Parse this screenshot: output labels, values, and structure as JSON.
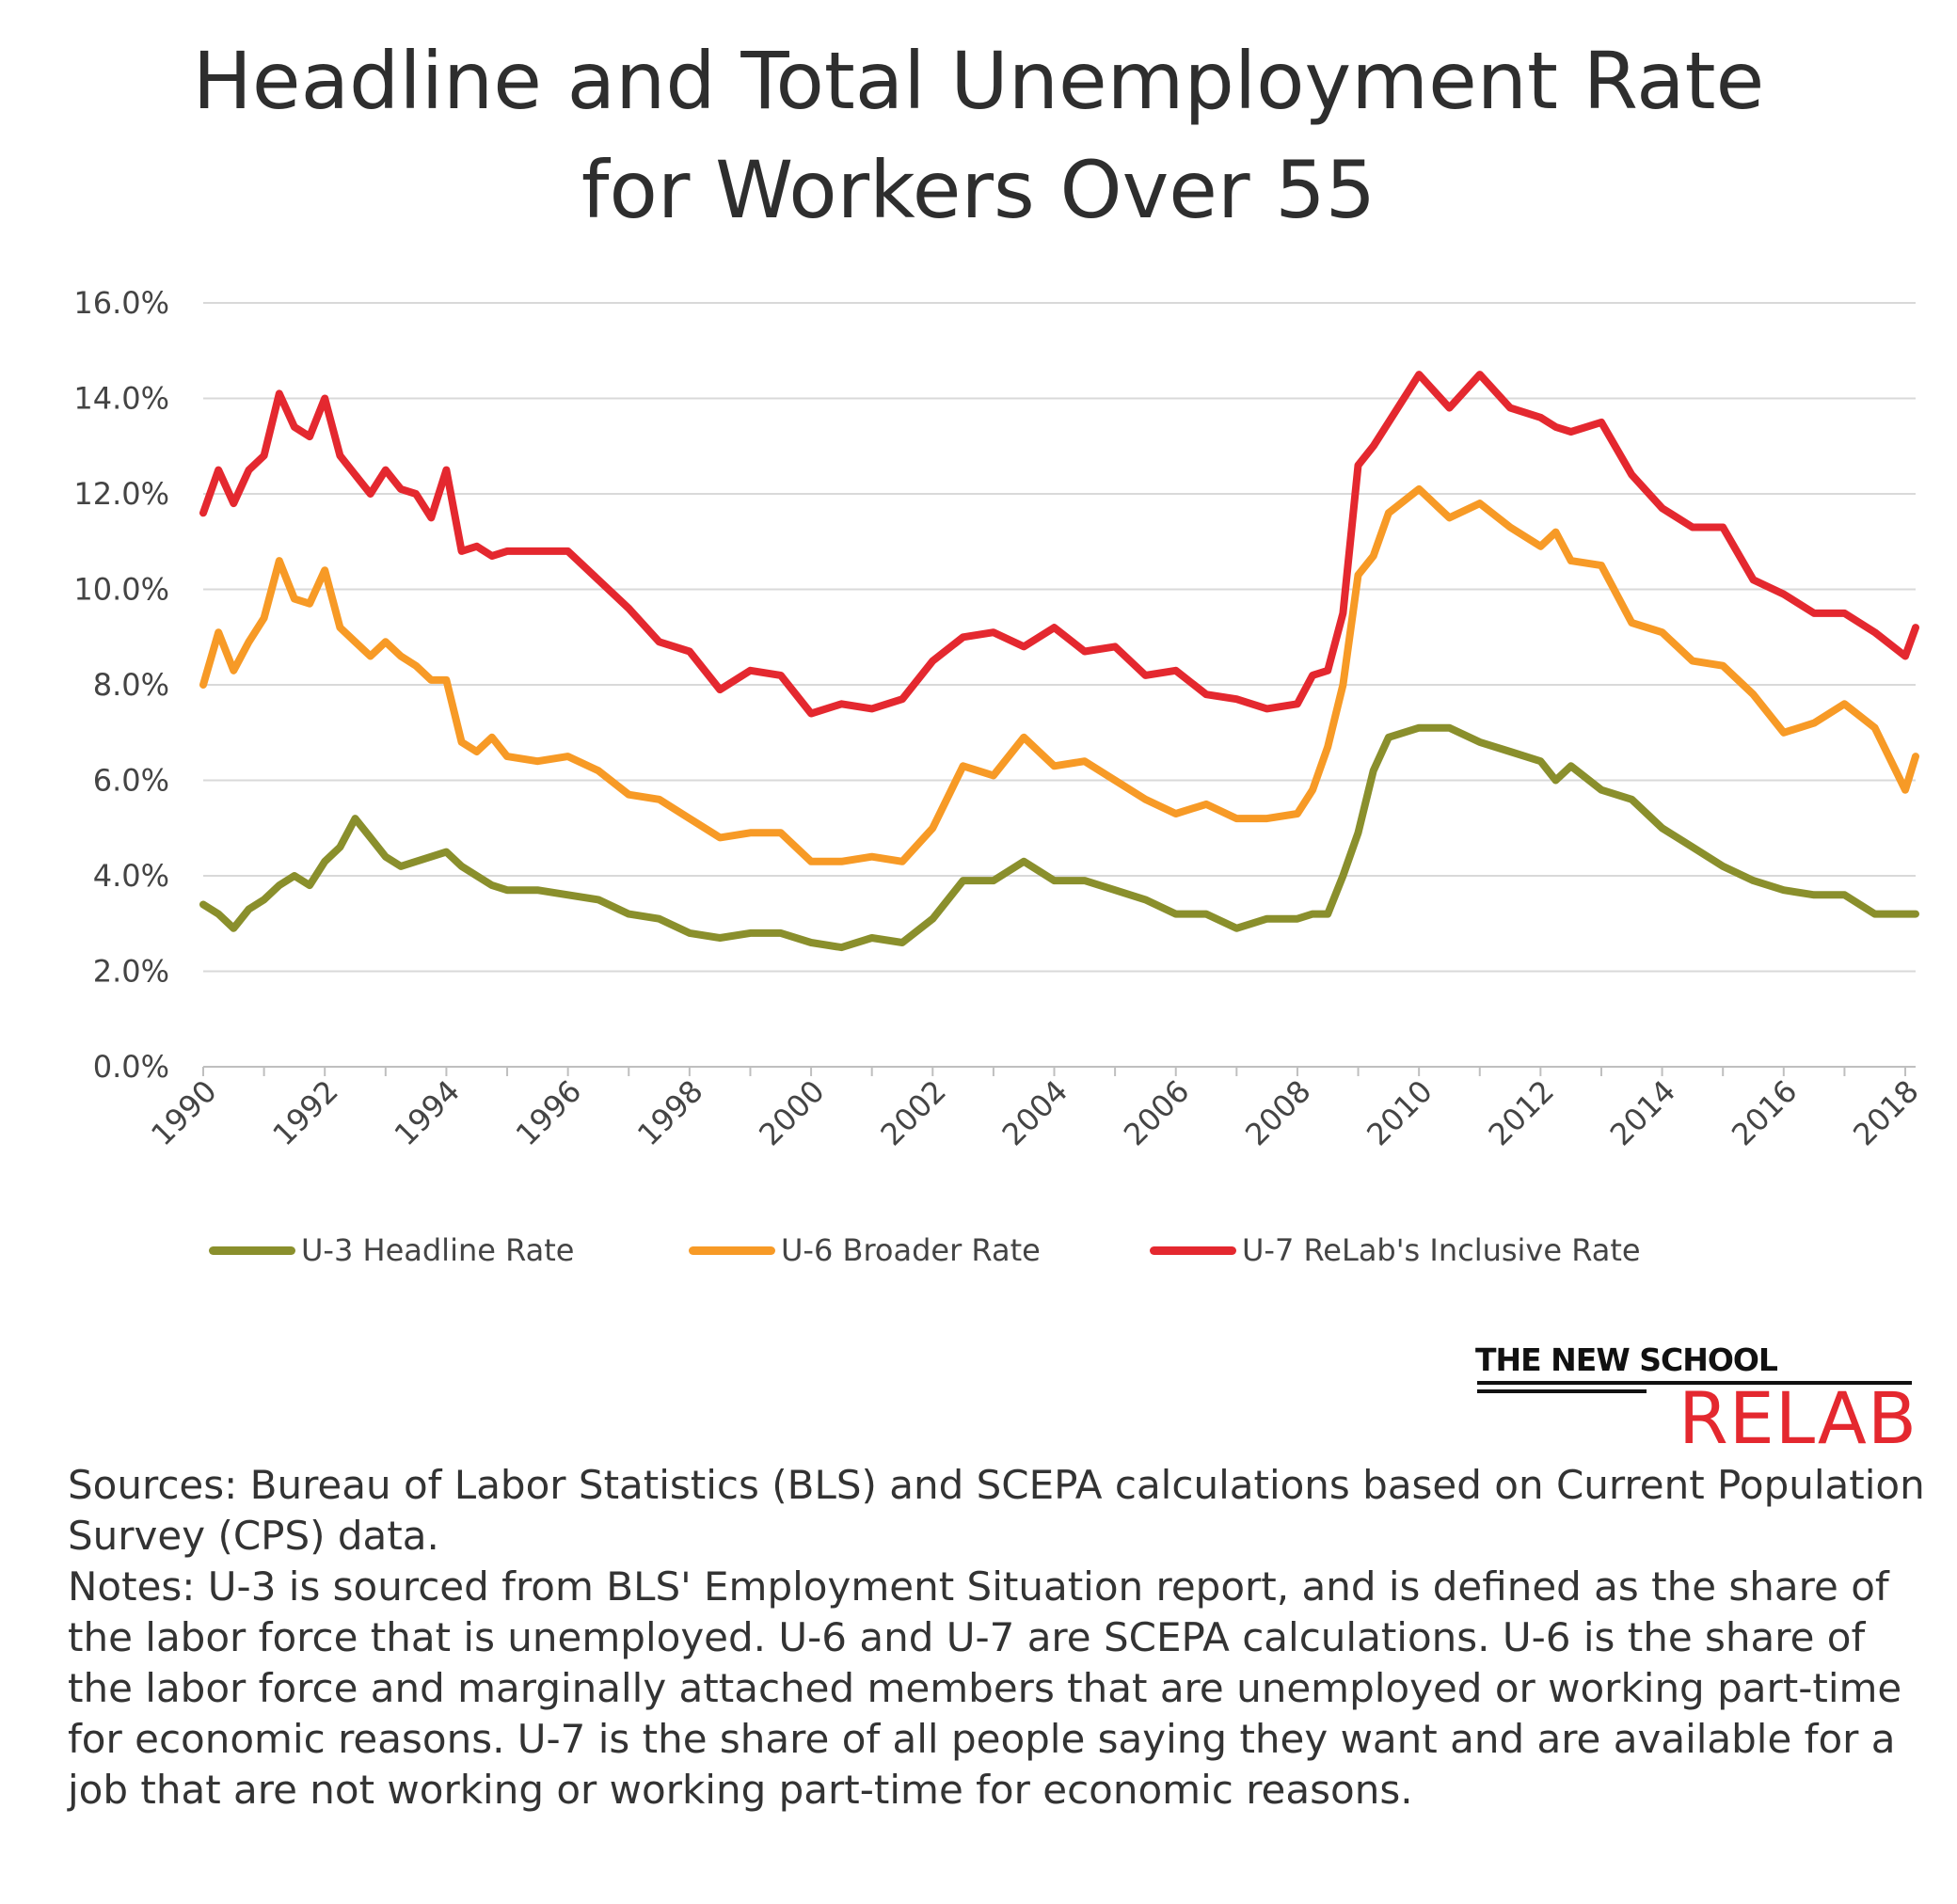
{
  "title": {
    "line1": "Headline and Total Unemployment Rate",
    "line2": "for Workers Over 55"
  },
  "colors": {
    "u3": "#8a8f2c",
    "u6": "#f79a26",
    "u7": "#e4282f",
    "grid": "#d9d9d9",
    "axis": "#bfbfbf"
  },
  "legend": {
    "u3": "U-3 Headline Rate",
    "u6": "U-6 Broader Rate",
    "u7": "U-7 ReLab's Inclusive Rate"
  },
  "logo": {
    "top": "THE NEW SCHOOL",
    "bottom": "RELAB"
  },
  "notes": {
    "sources": "Sources: Bureau of Labor Statistics (BLS) and SCEPA calculations based on Current Population Survey (CPS) data.",
    "notes": "Notes: U-3 is sourced from BLS' Employment Situation report, and is defined as the share of the labor force that is unemployed. U-6 and U-7 are SCEPA calculations. U-6 is the share of the labor force and marginally attached members that are unemployed or working part-time for economic reasons. U-7 is the share of all people saying they want and are available for a job that are not working or working part-time for economic reasons."
  },
  "chart_data": {
    "type": "line",
    "title": "Headline and Total Unemployment Rate for Workers Over 55",
    "xlabel": "",
    "ylabel": "",
    "xlim": [
      1990,
      2018.17
    ],
    "ylim": [
      0,
      16
    ],
    "grid": true,
    "legend_position": "bottom",
    "y_ticks": [
      "0.0%",
      "2.0%",
      "4.0%",
      "6.0%",
      "8.0%",
      "10.0%",
      "12.0%",
      "14.0%",
      "16.0%"
    ],
    "x_ticks": [
      "1990",
      "1992",
      "1994",
      "1996",
      "1998",
      "2000",
      "2002",
      "2004",
      "2006",
      "2008",
      "2010",
      "2012",
      "2014",
      "2016",
      "2018"
    ],
    "series": [
      {
        "key": "u3",
        "name": "U-3 Headline Rate",
        "x": [
          1990,
          1990.25,
          1990.5,
          1990.75,
          1991,
          1991.25,
          1991.5,
          1991.75,
          1992,
          1992.25,
          1992.5,
          1992.75,
          1993,
          1993.25,
          1993.5,
          1993.75,
          1994,
          1994.25,
          1994.5,
          1994.75,
          1995,
          1995.5,
          1996,
          1996.5,
          1997,
          1997.5,
          1998,
          1998.5,
          1999,
          1999.5,
          2000,
          2000.5,
          2001,
          2001.5,
          2002,
          2002.5,
          2003,
          2003.5,
          2004,
          2004.5,
          2005,
          2005.5,
          2006,
          2006.5,
          2007,
          2007.5,
          2008,
          2008.25,
          2008.5,
          2008.75,
          2009,
          2009.25,
          2009.5,
          2010,
          2010.5,
          2011,
          2011.5,
          2012,
          2012.25,
          2012.5,
          2013,
          2013.5,
          2014,
          2014.5,
          2015,
          2015.5,
          2016,
          2016.5,
          2017,
          2017.5,
          2018,
          2018.17
        ],
        "values": [
          3.4,
          3.2,
          2.9,
          3.3,
          3.5,
          3.8,
          4.0,
          3.8,
          4.3,
          4.6,
          5.2,
          4.8,
          4.4,
          4.2,
          4.3,
          4.4,
          4.5,
          4.2,
          4.0,
          3.8,
          3.7,
          3.7,
          3.6,
          3.5,
          3.2,
          3.1,
          2.8,
          2.7,
          2.8,
          2.8,
          2.6,
          2.5,
          2.7,
          2.6,
          3.1,
          3.9,
          3.9,
          4.3,
          3.9,
          3.9,
          3.7,
          3.5,
          3.2,
          3.2,
          2.9,
          3.1,
          3.1,
          3.2,
          3.2,
          4.0,
          4.9,
          6.2,
          6.9,
          7.1,
          7.1,
          6.8,
          6.6,
          6.4,
          6.0,
          6.3,
          5.8,
          5.6,
          5.0,
          4.6,
          4.2,
          3.9,
          3.7,
          3.6,
          3.6,
          3.2,
          3.2,
          3.2
        ]
      },
      {
        "key": "u6",
        "name": "U-6 Broader Rate",
        "x": [
          1990,
          1990.25,
          1990.5,
          1990.75,
          1991,
          1991.25,
          1991.5,
          1991.75,
          1992,
          1992.25,
          1992.5,
          1992.75,
          1993,
          1993.25,
          1993.5,
          1993.75,
          1994,
          1994.25,
          1994.5,
          1994.75,
          1995,
          1995.5,
          1996,
          1996.5,
          1997,
          1997.5,
          1998,
          1998.5,
          1999,
          1999.5,
          2000,
          2000.5,
          2001,
          2001.5,
          2002,
          2002.5,
          2003,
          2003.5,
          2004,
          2004.5,
          2005,
          2005.5,
          2006,
          2006.5,
          2007,
          2007.5,
          2008,
          2008.25,
          2008.5,
          2008.75,
          2009,
          2009.25,
          2009.5,
          2010,
          2010.5,
          2011,
          2011.5,
          2012,
          2012.25,
          2012.5,
          2013,
          2013.5,
          2014,
          2014.5,
          2015,
          2015.5,
          2016,
          2016.5,
          2017,
          2017.5,
          2018,
          2018.17
        ],
        "values": [
          8.0,
          9.1,
          8.3,
          8.9,
          9.4,
          10.6,
          9.8,
          9.7,
          10.4,
          9.2,
          8.9,
          8.6,
          8.9,
          8.6,
          8.4,
          8.1,
          8.1,
          6.8,
          6.6,
          6.9,
          6.5,
          6.4,
          6.5,
          6.2,
          5.7,
          5.6,
          5.2,
          4.8,
          4.9,
          4.9,
          4.3,
          4.3,
          4.4,
          4.3,
          5.0,
          6.3,
          6.1,
          6.9,
          6.3,
          6.4,
          6.0,
          5.6,
          5.3,
          5.5,
          5.2,
          5.2,
          5.3,
          5.8,
          6.7,
          8.0,
          10.3,
          10.7,
          11.6,
          12.1,
          11.5,
          11.8,
          11.3,
          10.9,
          11.2,
          10.6,
          10.5,
          9.3,
          9.1,
          8.5,
          8.4,
          7.8,
          7.0,
          7.2,
          7.6,
          7.1,
          5.8,
          6.5
        ]
      },
      {
        "key": "u7",
        "name": "U-7 ReLab's Inclusive Rate",
        "x": [
          1990,
          1990.25,
          1990.5,
          1990.75,
          1991,
          1991.25,
          1991.5,
          1991.75,
          1992,
          1992.25,
          1992.5,
          1992.75,
          1993,
          1993.25,
          1993.5,
          1993.75,
          1994,
          1994.25,
          1994.5,
          1994.75,
          1995,
          1995.5,
          1996,
          1996.5,
          1997,
          1997.5,
          1998,
          1998.5,
          1999,
          1999.5,
          2000,
          2000.5,
          2001,
          2001.5,
          2002,
          2002.5,
          2003,
          2003.5,
          2004,
          2004.5,
          2005,
          2005.5,
          2006,
          2006.5,
          2007,
          2007.5,
          2008,
          2008.25,
          2008.5,
          2008.75,
          2009,
          2009.25,
          2009.5,
          2010,
          2010.5,
          2011,
          2011.5,
          2012,
          2012.25,
          2012.5,
          2013,
          2013.5,
          2014,
          2014.5,
          2015,
          2015.5,
          2016,
          2016.5,
          2017,
          2017.5,
          2018,
          2018.17
        ],
        "values": [
          11.6,
          12.5,
          11.8,
          12.5,
          12.8,
          14.1,
          13.4,
          13.2,
          14.0,
          12.8,
          12.4,
          12.0,
          12.5,
          12.1,
          12.0,
          11.5,
          12.5,
          10.8,
          10.9,
          10.7,
          10.8,
          10.8,
          10.8,
          10.2,
          9.6,
          8.9,
          8.7,
          7.9,
          8.3,
          8.2,
          7.4,
          7.6,
          7.5,
          7.7,
          8.5,
          9.0,
          9.1,
          8.8,
          9.2,
          8.7,
          8.8,
          8.2,
          8.3,
          7.8,
          7.7,
          7.5,
          7.6,
          8.2,
          8.3,
          9.5,
          12.6,
          13.0,
          13.5,
          14.5,
          13.8,
          14.5,
          13.8,
          13.6,
          13.4,
          13.3,
          13.5,
          12.4,
          11.7,
          11.3,
          11.3,
          10.2,
          9.9,
          9.5,
          9.5,
          9.1,
          8.6,
          9.2
        ]
      }
    ]
  }
}
